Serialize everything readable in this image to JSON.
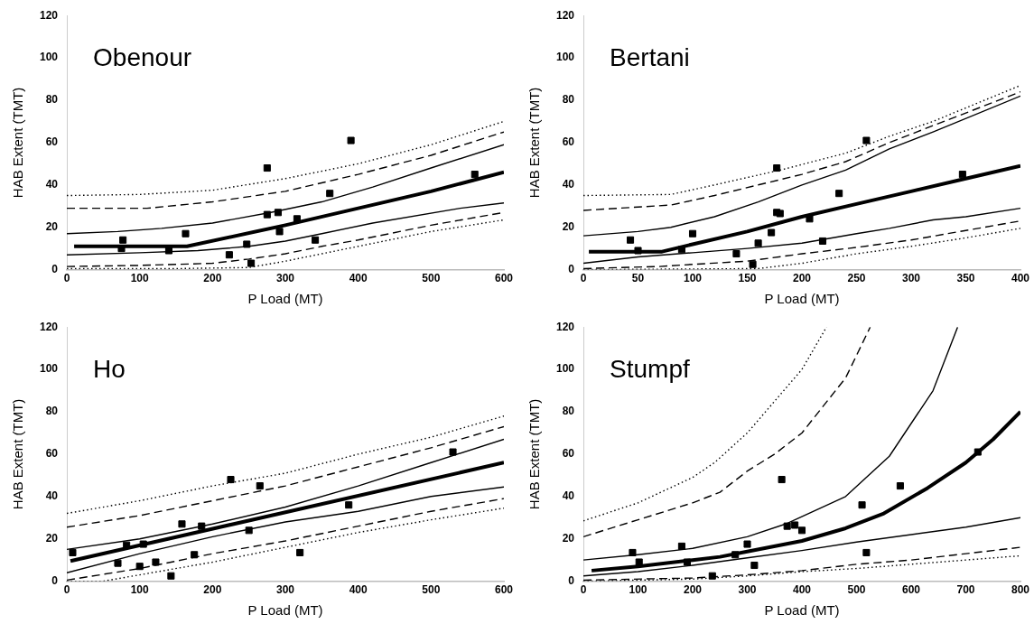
{
  "chart_data": [
    {
      "type": "line",
      "xlabel": "P Load (MT)",
      "ylabel": "HAB Extent (TMT)",
      "annotations": [
        "Obenour"
      ],
      "xlim": [
        0,
        600
      ],
      "xticks": [
        0,
        100,
        200,
        300,
        400,
        500,
        600
      ],
      "ylim": [
        0,
        120
      ],
      "yticks": [
        0,
        20,
        40,
        60,
        80,
        100,
        120
      ],
      "grid": false,
      "legend": false,
      "series": [
        {
          "color": "#000000",
          "line_style": "solid",
          "x": [
            10,
            165,
            300,
            400,
            500,
            600
          ],
          "values": [
            11,
            11,
            21,
            29,
            37,
            46
          ]
        },
        {
          "color": "#000000",
          "line_style": "solid",
          "x": [
            0,
            70,
            130,
            200,
            280,
            350,
            420,
            500,
            600
          ],
          "values": [
            17,
            18,
            19.5,
            22,
            27,
            32,
            39,
            48,
            59
          ]
        },
        {
          "color": "#000000",
          "line_style": "solid",
          "x": [
            0,
            100,
            180,
            250,
            300,
            350,
            420,
            540,
            600
          ],
          "values": [
            7,
            8,
            9,
            11,
            13.5,
            17,
            22,
            29,
            31.5
          ]
        },
        {
          "color": "#000000",
          "line_style": "dashed",
          "x": [
            0,
            110,
            200,
            300,
            400,
            500,
            600
          ],
          "values": [
            29,
            29,
            32,
            37,
            45,
            54,
            65
          ]
        },
        {
          "color": "#000000",
          "line_style": "dashed",
          "x": [
            0,
            100,
            200,
            250,
            300,
            350,
            400,
            500,
            600
          ],
          "values": [
            1.5,
            2,
            3,
            5,
            7.5,
            11,
            14,
            21,
            27
          ]
        },
        {
          "color": "#000000",
          "line_style": "dotted",
          "x": [
            0,
            100,
            200,
            300,
            400,
            500,
            600
          ],
          "values": [
            35,
            35.5,
            37.5,
            43,
            50,
            59,
            70
          ]
        },
        {
          "color": "#000000",
          "line_style": "dotted",
          "x": [
            0,
            150,
            250,
            300,
            350,
            400,
            500,
            600
          ],
          "values": [
            0.5,
            0.5,
            1,
            4,
            7.5,
            11,
            18,
            23.5
          ]
        },
        {
          "type": "scatter",
          "color": "#000000",
          "marker": "square",
          "x": [
            75,
            77,
            140,
            163,
            223,
            247,
            253,
            275,
            275,
            290,
            292,
            316,
            341,
            361,
            390,
            560
          ],
          "values": [
            10,
            14,
            9,
            17,
            7,
            12,
            3,
            48,
            26,
            27,
            18,
            24,
            14,
            36,
            61,
            45
          ]
        }
      ]
    },
    {
      "type": "line",
      "xlabel": "P Load (MT)",
      "ylabel": "HAB Extent (TMT)",
      "annotations": [
        "Bertani"
      ],
      "xlim": [
        0,
        400
      ],
      "xticks": [
        0,
        50,
        100,
        150,
        200,
        250,
        300,
        350,
        400
      ],
      "ylim": [
        0,
        120
      ],
      "yticks": [
        0,
        20,
        40,
        60,
        80,
        100,
        120
      ],
      "grid": false,
      "legend": false,
      "series": [
        {
          "color": "#000000",
          "line_style": "solid",
          "x": [
            5,
            72,
            100,
            150,
            200,
            250,
            300,
            350,
            400
          ],
          "values": [
            8.5,
            8.5,
            12,
            18,
            25,
            31,
            37,
            43,
            49
          ]
        },
        {
          "color": "#000000",
          "line_style": "solid",
          "x": [
            0,
            50,
            80,
            120,
            160,
            200,
            240,
            280,
            320,
            400
          ],
          "values": [
            16,
            18,
            20,
            25,
            32,
            40,
            47,
            57,
            65,
            82
          ]
        },
        {
          "color": "#000000",
          "line_style": "solid",
          "x": [
            0,
            50,
            100,
            150,
            200,
            250,
            280,
            320,
            350,
            400
          ],
          "values": [
            3,
            6,
            8,
            10,
            12.5,
            17,
            19.5,
            23.5,
            25,
            29
          ]
        },
        {
          "color": "#000000",
          "line_style": "dashed",
          "x": [
            0,
            80,
            120,
            160,
            200,
            240,
            280,
            320,
            400
          ],
          "values": [
            28,
            30.5,
            35,
            40,
            45,
            51,
            60,
            68,
            84
          ]
        },
        {
          "color": "#000000",
          "line_style": "dashed",
          "x": [
            0,
            70,
            100,
            150,
            200,
            250,
            300,
            350,
            400
          ],
          "values": [
            0.5,
            1.5,
            2.5,
            4,
            7.5,
            10.5,
            14,
            18.5,
            23
          ]
        },
        {
          "color": "#000000",
          "line_style": "dotted",
          "x": [
            0,
            80,
            120,
            180,
            240,
            280,
            320,
            400
          ],
          "values": [
            35,
            35.5,
            40,
            47,
            55,
            63,
            70,
            87
          ]
        },
        {
          "color": "#000000",
          "line_style": "dotted",
          "x": [
            0,
            160,
            200,
            250,
            300,
            350,
            400
          ],
          "values": [
            0,
            0.5,
            3,
            7.5,
            11,
            15,
            19.5
          ]
        },
        {
          "type": "scatter",
          "color": "#000000",
          "marker": "square",
          "x": [
            43,
            50,
            90,
            100,
            140,
            155,
            160,
            172,
            177,
            177,
            180,
            207,
            219,
            234,
            259,
            347
          ],
          "values": [
            14,
            9,
            9.5,
            17,
            7.5,
            2.5,
            12.5,
            17.5,
            48,
            27,
            26.5,
            24,
            13.5,
            36,
            61,
            45
          ]
        }
      ]
    },
    {
      "type": "line",
      "xlabel": "P Load (MT)",
      "ylabel": "HAB Extent (TMT)",
      "annotations": [
        "Ho"
      ],
      "xlim": [
        0,
        600
      ],
      "xticks": [
        0,
        100,
        200,
        300,
        400,
        500,
        600
      ],
      "ylim": [
        0,
        120
      ],
      "yticks": [
        0,
        20,
        40,
        60,
        80,
        100,
        120
      ],
      "grid": false,
      "legend": false,
      "series": [
        {
          "color": "#000000",
          "line_style": "solid",
          "x": [
            5,
            600
          ],
          "values": [
            9.5,
            56
          ]
        },
        {
          "color": "#000000",
          "line_style": "solid",
          "x": [
            0,
            100,
            200,
            300,
            400,
            500,
            600
          ],
          "values": [
            15,
            20,
            27,
            35,
            45,
            56,
            67
          ]
        },
        {
          "color": "#000000",
          "line_style": "solid",
          "x": [
            0,
            100,
            200,
            300,
            400,
            500,
            600
          ],
          "values": [
            4,
            13,
            21,
            28,
            33,
            40,
            44.5
          ]
        },
        {
          "color": "#000000",
          "line_style": "dashed",
          "x": [
            0,
            100,
            200,
            300,
            400,
            500,
            600
          ],
          "values": [
            25.5,
            31,
            38,
            45,
            54,
            63,
            73
          ]
        },
        {
          "color": "#000000",
          "line_style": "dashed",
          "x": [
            0,
            100,
            200,
            300,
            400,
            500,
            600
          ],
          "values": [
            0.5,
            6,
            13,
            19,
            26,
            33,
            39
          ]
        },
        {
          "color": "#000000",
          "line_style": "dotted",
          "x": [
            0,
            100,
            200,
            300,
            400,
            500,
            600
          ],
          "values": [
            32,
            38,
            45,
            51,
            60,
            68,
            78
          ]
        },
        {
          "color": "#000000",
          "line_style": "dotted",
          "x": [
            0,
            50,
            100,
            200,
            300,
            400,
            500,
            600
          ],
          "values": [
            0,
            0,
            3,
            9,
            16,
            23,
            29,
            34.5
          ]
        },
        {
          "type": "scatter",
          "color": "#000000",
          "marker": "square",
          "x": [
            8,
            70,
            82,
            100,
            105,
            122,
            143,
            158,
            175,
            185,
            225,
            250,
            265,
            320,
            387,
            530
          ],
          "values": [
            13.5,
            8.5,
            17,
            7,
            17.5,
            9,
            2.5,
            27,
            12.5,
            26,
            48,
            24,
            45,
            13.5,
            36,
            61
          ]
        }
      ]
    },
    {
      "type": "line",
      "xlabel": "P Load (MT)",
      "ylabel": "HAB Extent (TMT)",
      "annotations": [
        "Stumpf"
      ],
      "xlim": [
        0,
        800
      ],
      "xticks": [
        0,
        100,
        200,
        300,
        400,
        500,
        600,
        700,
        800
      ],
      "ylim": [
        0,
        120
      ],
      "yticks": [
        0,
        20,
        40,
        60,
        80,
        100,
        120
      ],
      "grid": false,
      "legend": false,
      "series": [
        {
          "color": "#000000",
          "line_style": "solid",
          "x": [
            15,
            100,
            200,
            250,
            300,
            400,
            480,
            550,
            630,
            700,
            750,
            800
          ],
          "values": [
            5,
            7,
            10,
            11.5,
            14,
            19,
            25,
            32,
            44,
            56,
            67,
            80
          ]
        },
        {
          "color": "#000000",
          "line_style": "solid",
          "x": [
            0,
            100,
            200,
            300,
            370,
            480,
            560,
            640,
            685
          ],
          "values": [
            10,
            12.5,
            15.5,
            21,
            27,
            40,
            59,
            90,
            120
          ]
        },
        {
          "color": "#000000",
          "line_style": "solid",
          "x": [
            0,
            100,
            200,
            300,
            400,
            500,
            600,
            700,
            800
          ],
          "values": [
            2.5,
            4.5,
            7.5,
            11,
            14.5,
            18.5,
            22,
            25.5,
            30
          ]
        },
        {
          "color": "#000000",
          "line_style": "dashed",
          "x": [
            0,
            100,
            200,
            250,
            300,
            350,
            400,
            480,
            525
          ],
          "values": [
            21,
            29,
            37,
            42,
            52,
            60,
            70,
            96,
            120
          ]
        },
        {
          "color": "#000000",
          "line_style": "dashed",
          "x": [
            0,
            200,
            300,
            400,
            500,
            600,
            700,
            800
          ],
          "values": [
            0.5,
            1.5,
            3,
            5,
            8,
            10,
            13,
            16
          ]
        },
        {
          "color": "#000000",
          "line_style": "dotted",
          "x": [
            0,
            100,
            200,
            240,
            300,
            400,
            445
          ],
          "values": [
            28.5,
            37,
            49,
            56,
            70,
            100,
            120
          ]
        },
        {
          "color": "#000000",
          "line_style": "dotted",
          "x": [
            0,
            200,
            300,
            400,
            500,
            600,
            700,
            800
          ],
          "values": [
            0,
            1,
            2.5,
            4.5,
            6,
            8,
            10,
            12
          ]
        },
        {
          "type": "scatter",
          "color": "#000000",
          "marker": "square",
          "x": [
            90,
            102,
            180,
            190,
            236,
            278,
            300,
            313,
            363,
            373,
            387,
            400,
            510,
            518,
            580,
            722
          ],
          "values": [
            13.5,
            9,
            16.5,
            9,
            2.5,
            12.5,
            17.5,
            7.5,
            48,
            26,
            26.5,
            24,
            36,
            13.5,
            45,
            61
          ]
        }
      ]
    }
  ]
}
